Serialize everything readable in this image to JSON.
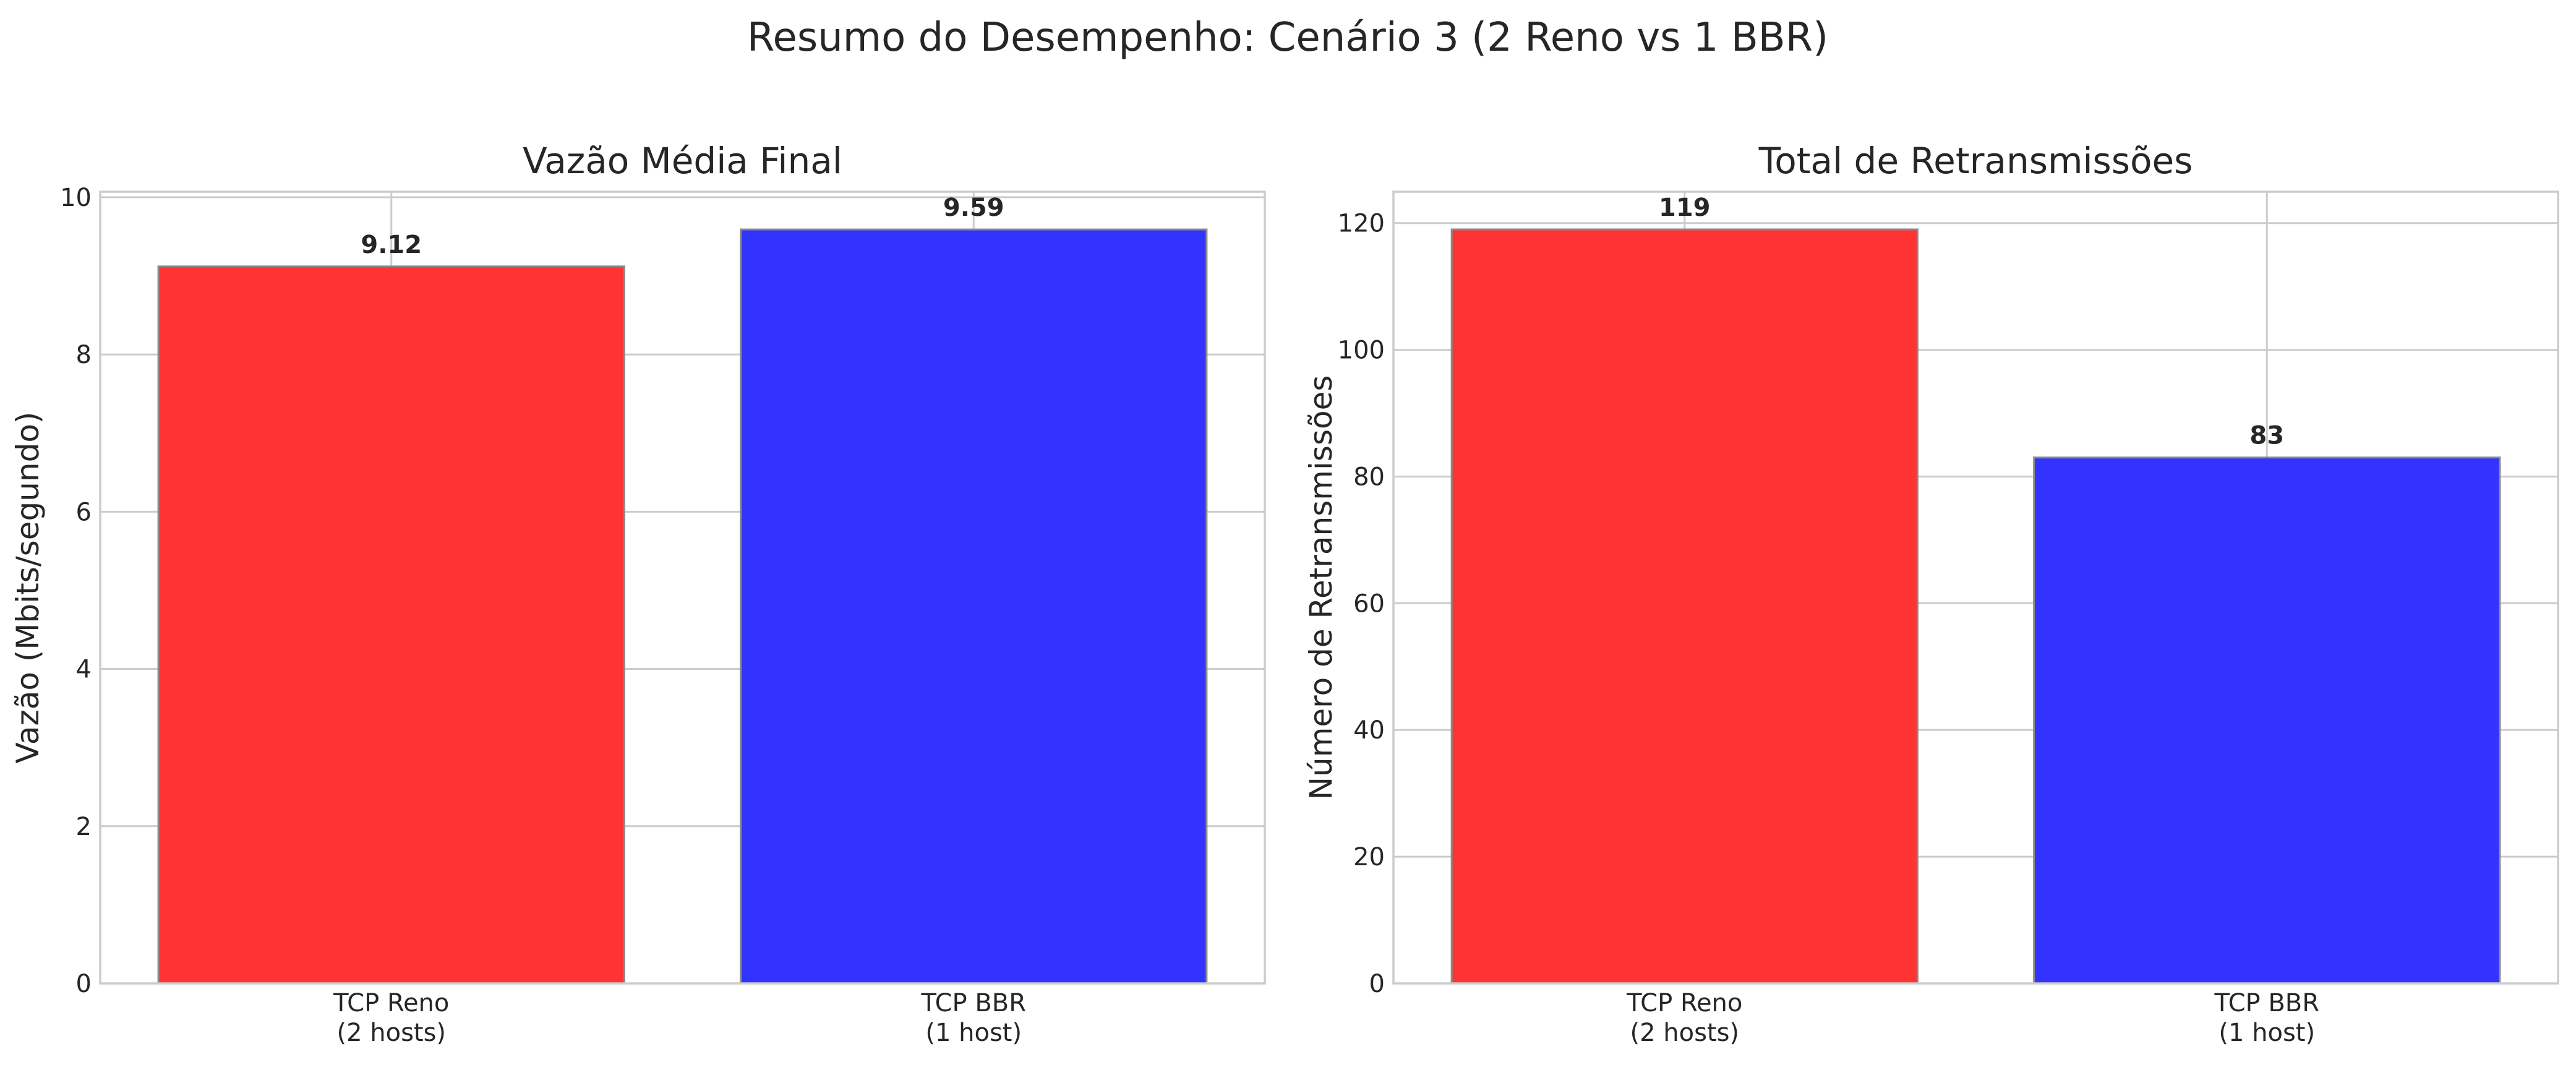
{
  "figure_title": "Resumo do Desempenho: Cenário 3 (2 Reno vs 1 BBR)",
  "chart_data": [
    {
      "type": "bar",
      "title": "Vazão Média Final",
      "xlabel": "",
      "ylabel": "Vazão (Mbits/segundo)",
      "categories": [
        "TCP Reno\n(2 hosts)",
        "TCP BBR\n(1 host)"
      ],
      "values": [
        9.12,
        9.59
      ],
      "value_labels": [
        "9.12",
        "9.59"
      ],
      "bar_colors": [
        "#ff3333",
        "#3333ff"
      ],
      "ylim": [
        0,
        10.07
      ],
      "yticks": [
        0,
        2,
        4,
        6,
        8,
        10
      ],
      "grid": true
    },
    {
      "type": "bar",
      "title": "Total de Retransmissões",
      "xlabel": "",
      "ylabel": "Número de Retransmissões",
      "categories": [
        "TCP Reno\n(2 hosts)",
        "TCP BBR\n(1 host)"
      ],
      "values": [
        119,
        83
      ],
      "value_labels": [
        "119",
        "83"
      ],
      "bar_colors": [
        "#ff3333",
        "#3333ff"
      ],
      "ylim": [
        0,
        124.95
      ],
      "yticks": [
        0,
        20,
        40,
        60,
        80,
        100,
        120
      ],
      "grid": true
    }
  ]
}
